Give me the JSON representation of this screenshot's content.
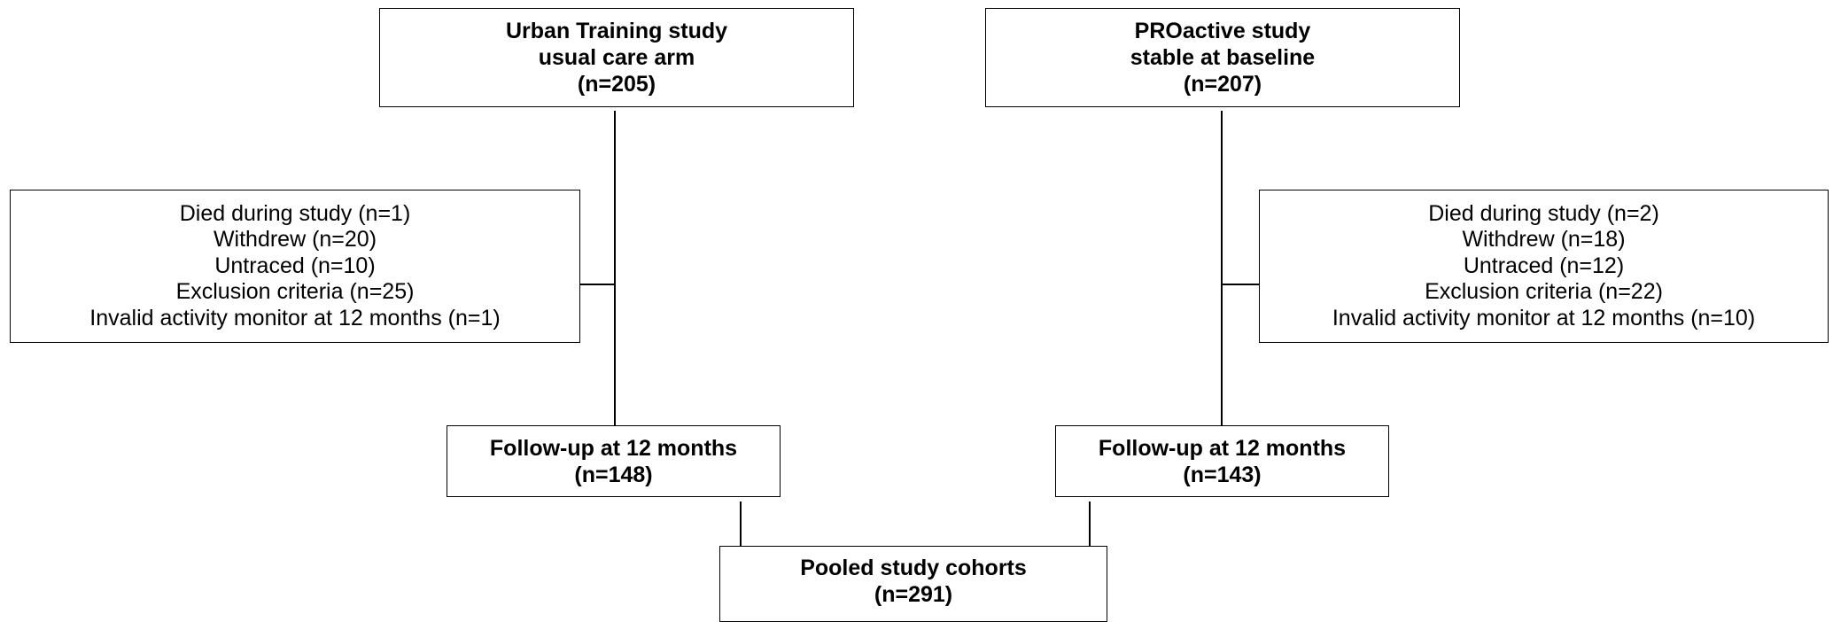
{
  "boxes": {
    "urban": {
      "lines": [
        "Urban Training study",
        "usual care arm",
        "(n=205)"
      ]
    },
    "proactive": {
      "lines": [
        "PROactive study",
        "stable at baseline",
        "(n=207)"
      ]
    },
    "excl_left": {
      "lines": [
        "Died during study (n=1)",
        "Withdrew (n=20)",
        "Untraced (n=10)",
        "Exclusion criteria (n=25)",
        "Invalid activity monitor at 12 months (n=1)"
      ]
    },
    "excl_right": {
      "lines": [
        "Died during study (n=2)",
        "Withdrew (n=18)",
        "Untraced (n=12)",
        "Exclusion criteria (n=22)",
        "Invalid activity monitor at 12 months (n=10)"
      ]
    },
    "followup_left": {
      "lines": [
        "Follow-up at 12 months",
        "(n=148)"
      ]
    },
    "followup_right": {
      "lines": [
        "Follow-up at 12 months",
        "(n=143)"
      ]
    },
    "pooled": {
      "lines": [
        "Pooled study cohorts",
        "(n=291)"
      ]
    }
  }
}
